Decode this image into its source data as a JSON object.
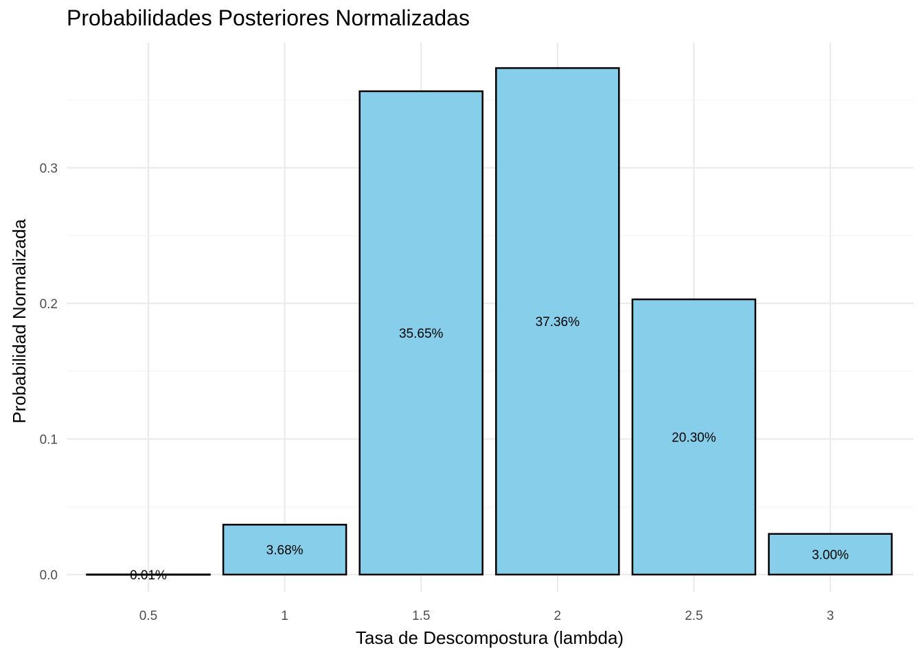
{
  "chart_data": {
    "type": "bar",
    "title": "Probabilidades Posteriores Normalizadas",
    "xlabel": "Tasa de Descompostura (lambda)",
    "ylabel": "Probabilidad Normalizada",
    "categories": [
      "0.5",
      "1",
      "1.5",
      "2",
      "2.5",
      "3"
    ],
    "values": [
      0.0001,
      0.0368,
      0.3565,
      0.3736,
      0.203,
      0.03
    ],
    "data_labels": [
      "0.01%",
      "3.68%",
      "35.65%",
      "37.36%",
      "20.30%",
      "3.00%"
    ],
    "yticks": [
      "0.0",
      "0.1",
      "0.2",
      "0.3"
    ],
    "ylim": [
      0,
      0.39
    ],
    "grid": true,
    "colors": {
      "bar_fill": "#87ceeb",
      "bar_outline": "#000000"
    }
  }
}
